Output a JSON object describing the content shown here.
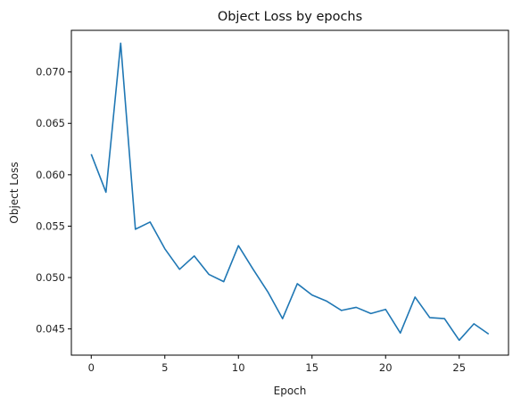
{
  "chart_data": {
    "type": "line",
    "title": "Object Loss by epochs",
    "xlabel": "Epoch",
    "ylabel": "Object Loss",
    "xlim": [
      -1.35,
      28.35
    ],
    "ylim": [
      0.04245,
      0.07405
    ],
    "xticks": [
      0,
      5,
      10,
      15,
      20,
      25
    ],
    "xtick_labels": [
      "0",
      "5",
      "10",
      "15",
      "20",
      "25"
    ],
    "yticks": [
      0.045,
      0.05,
      0.055,
      0.06,
      0.065,
      0.07
    ],
    "ytick_labels": [
      "0.045",
      "0.050",
      "0.055",
      "0.060",
      "0.065",
      "0.070"
    ],
    "grid": false,
    "line_color": "#1f77b4",
    "series": [
      {
        "x": [
          0,
          1,
          2,
          3,
          4,
          5,
          6,
          7,
          8,
          9,
          10,
          11,
          12,
          13,
          14,
          15,
          16,
          17,
          18,
          19,
          20,
          21,
          22,
          23,
          24,
          25,
          26,
          27
        ],
        "values": [
          0.062,
          0.0583,
          0.0728,
          0.0547,
          0.0554,
          0.0528,
          0.0508,
          0.0521,
          0.0503,
          0.0496,
          0.0531,
          0.0508,
          0.0486,
          0.046,
          0.0494,
          0.0483,
          0.0477,
          0.0468,
          0.0471,
          0.0465,
          0.0469,
          0.0446,
          0.0481,
          0.0461,
          0.046,
          0.0439,
          0.0455,
          0.0445
        ]
      }
    ]
  }
}
